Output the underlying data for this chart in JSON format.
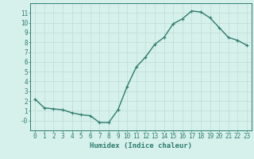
{
  "x": [
    0,
    1,
    2,
    3,
    4,
    5,
    6,
    7,
    8,
    9,
    10,
    11,
    12,
    13,
    14,
    15,
    16,
    17,
    18,
    19,
    20,
    21,
    22,
    23
  ],
  "y": [
    2.2,
    1.3,
    1.2,
    1.1,
    0.8,
    0.6,
    0.5,
    -0.2,
    -0.2,
    1.1,
    3.5,
    5.5,
    6.5,
    7.8,
    8.5,
    9.9,
    10.4,
    11.2,
    11.1,
    10.5,
    9.5,
    8.5,
    8.2,
    7.7
  ],
  "line_color": "#2e7d6e",
  "marker": "+",
  "markersize": 3,
  "linewidth": 1.0,
  "xlabel": "Humidex (Indice chaleur)",
  "bg_color": "#d6f0ec",
  "grid_color": "#c0dbd6",
  "axis_color": "#2e7d6e",
  "tick_color": "#2e7d6e",
  "xlabel_color": "#2e7d6e",
  "xlim": [
    -0.5,
    23.5
  ],
  "ylim": [
    -1.0,
    12.0
  ],
  "yticks": [
    0,
    1,
    2,
    3,
    4,
    5,
    6,
    7,
    8,
    9,
    10,
    11
  ],
  "xticks": [
    0,
    1,
    2,
    3,
    4,
    5,
    6,
    7,
    8,
    9,
    10,
    11,
    12,
    13,
    14,
    15,
    16,
    17,
    18,
    19,
    20,
    21,
    22,
    23
  ],
  "xlabel_fontsize": 6.5,
  "tick_fontsize": 5.5,
  "markeredgewidth": 0.8
}
